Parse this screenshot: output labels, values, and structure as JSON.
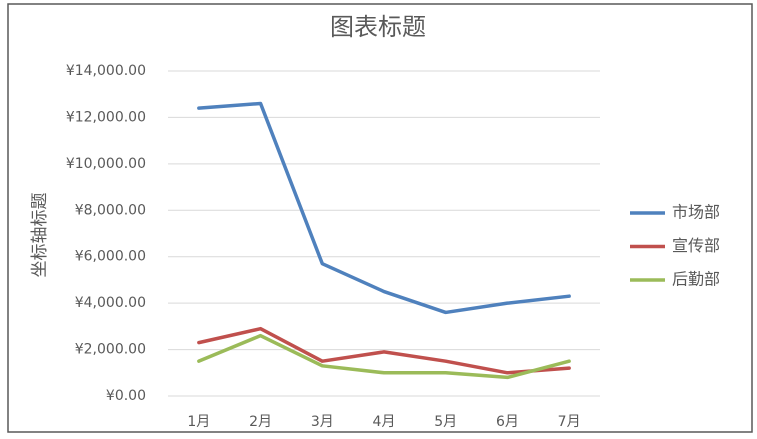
{
  "chart_data": {
    "type": "line",
    "title": "图表标题",
    "y_label": "坐标轴标题",
    "categories": [
      "1月",
      "2月",
      "3月",
      "4月",
      "5月",
      "6月",
      "7月"
    ],
    "series": [
      {
        "name": "市场部",
        "color": "#4f81bd",
        "values": [
          12400,
          12600,
          5700,
          4500,
          3600,
          4000,
          4300
        ]
      },
      {
        "name": "宣传部",
        "color": "#c0504d",
        "values": [
          2300,
          2900,
          1500,
          1900,
          1500,
          1000,
          1200
        ]
      },
      {
        "name": "后勤部",
        "color": "#9bbb59",
        "values": [
          1500,
          2600,
          1300,
          1000,
          1000,
          800,
          1500
        ]
      }
    ],
    "ylim": [
      0,
      14000
    ],
    "yticks": [
      {
        "value": 0,
        "label": "¥0.00"
      },
      {
        "value": 2000,
        "label": "¥2,000.00"
      },
      {
        "value": 4000,
        "label": "¥4,000.00"
      },
      {
        "value": 6000,
        "label": "¥6,000.00"
      },
      {
        "value": 8000,
        "label": "¥8,000.00"
      },
      {
        "value": 10000,
        "label": "¥10,000.00"
      },
      {
        "value": 12000,
        "label": "¥12,000.00"
      },
      {
        "value": 14000,
        "label": "¥14,000.00"
      }
    ],
    "grid": true,
    "legend": "right"
  }
}
